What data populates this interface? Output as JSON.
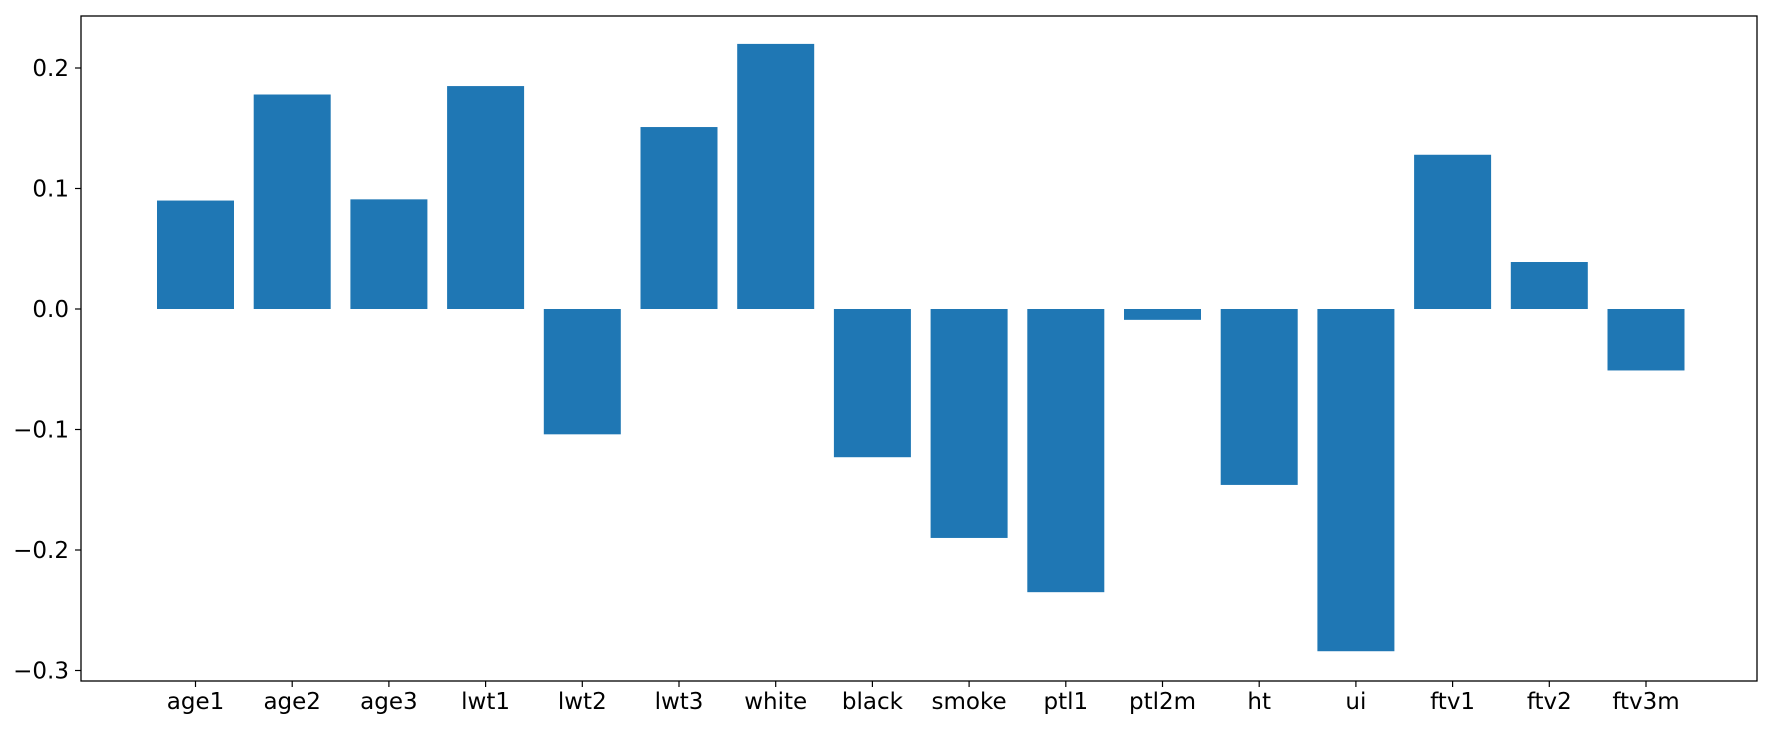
{
  "chart_data": {
    "type": "bar",
    "title": "",
    "xlabel": "",
    "ylabel": "",
    "categories": [
      "age1",
      "age2",
      "age3",
      "lwt1",
      "lwt2",
      "lwt3",
      "white",
      "black",
      "smoke",
      "ptl1",
      "ptl2m",
      "ht",
      "ui",
      "ftv1",
      "ftv2",
      "ftv3m"
    ],
    "values": [
      0.09,
      0.178,
      0.091,
      0.185,
      -0.104,
      0.151,
      0.22,
      -0.123,
      -0.19,
      -0.235,
      -0.009,
      -0.146,
      -0.284,
      0.128,
      0.039,
      -0.051
    ],
    "yticks": [
      -0.3,
      -0.2,
      -0.1,
      0.0,
      0.1,
      0.2
    ],
    "ytick_labels": [
      "−0.3",
      "−0.2",
      "−0.1",
      "0.0",
      "0.1",
      "0.2"
    ],
    "ylim": [
      -0.31,
      0.245
    ],
    "grid": false,
    "legend": "none",
    "bar_color": "#1f77b4"
  }
}
